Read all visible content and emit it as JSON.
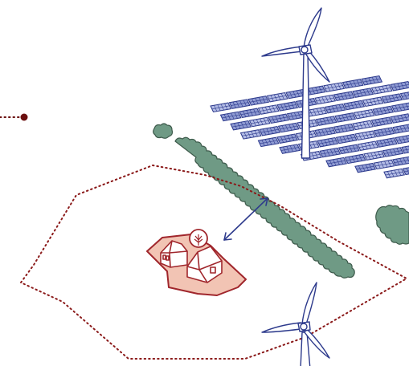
{
  "colors": {
    "background": "#ffffff",
    "turbine_stroke": "#2d3a8c",
    "turbine_fill": "#ffffff",
    "panel_frame": "#2d3a8c",
    "panel_cell": "#8f9bd3",
    "panel_cell_alt": "#b4bde6",
    "hedge_fill": "#6f9a85",
    "hedge_stroke": "#3d5a4b",
    "farmstead_stroke": "#a0262c",
    "farmstead_ground": "#f2c4b4",
    "house_fill": "#ffffff",
    "boundary": "#8b1a1a",
    "distance_arrow": "#2d3a8c",
    "point_marker": "#6b0f0f"
  },
  "icons": {
    "turbine": "wind-turbine-icon",
    "solar_panel": "solar-panel-icon",
    "hedge": "hedgerow-icon",
    "farmstead": "farmstead-icon",
    "tree": "tree-icon",
    "arrow": "double-arrow-icon",
    "marker": "point-marker-icon"
  }
}
